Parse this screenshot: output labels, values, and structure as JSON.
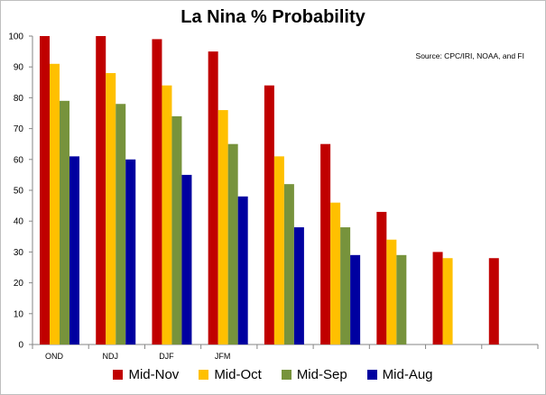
{
  "chart_data": {
    "type": "bar",
    "title": "La Nina % Probability",
    "annotation": "Source: CPC/IRI, NOAA, and FI",
    "categories": [
      "OND",
      "NDJ",
      "DJF",
      "JFM",
      "",
      "",
      "",
      "",
      ""
    ],
    "series": [
      {
        "name": "Mid-Nov",
        "color": "#c00000",
        "values": [
          100,
          100,
          99,
          95,
          84,
          65,
          43,
          30,
          28
        ]
      },
      {
        "name": "Mid-Oct",
        "color": "#ffc000",
        "values": [
          91,
          88,
          84,
          76,
          61,
          46,
          34,
          28,
          null
        ]
      },
      {
        "name": "Mid-Sep",
        "color": "#77933c",
        "values": [
          79,
          78,
          74,
          65,
          52,
          38,
          29,
          null,
          null
        ]
      },
      {
        "name": "Mid-Aug",
        "color": "#0000a0",
        "values": [
          61,
          60,
          55,
          48,
          38,
          29,
          null,
          null,
          null
        ]
      }
    ],
    "ylim": [
      0,
      100
    ],
    "yticks": [
      0,
      10,
      20,
      30,
      40,
      50,
      60,
      70,
      80,
      90,
      100
    ],
    "grid": false,
    "legend": "bottom"
  }
}
